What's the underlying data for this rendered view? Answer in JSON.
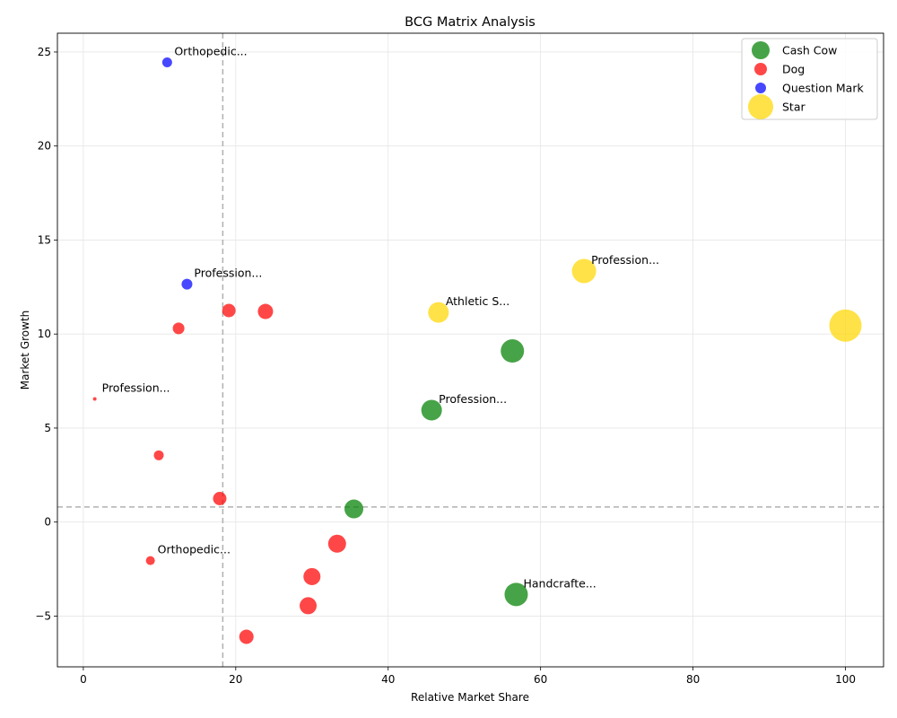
{
  "chart_data": {
    "type": "scatter",
    "title": "BCG Matrix Analysis",
    "xlabel": "Relative Market Share",
    "ylabel": "Market Growth",
    "xlim": [
      -3.4,
      105
    ],
    "ylim": [
      -7.7,
      26
    ],
    "xticks": [
      0,
      20,
      40,
      60,
      80,
      100
    ],
    "yticks": [
      -5,
      0,
      5,
      10,
      15,
      20,
      25
    ],
    "grid": true,
    "legend_position": "top-right",
    "thresholds": {
      "x": 18.3,
      "y": 0.8
    },
    "series": [
      {
        "name": "Cash Cow",
        "color": "#008000",
        "legend_marker_size": 10,
        "points": [
          {
            "x": 56.3,
            "y": 9.1,
            "size": 13,
            "label": ""
          },
          {
            "x": 45.7,
            "y": 5.95,
            "size": 11.5,
            "label": "Profession..."
          },
          {
            "x": 35.5,
            "y": 0.7,
            "size": 10.5,
            "label": ""
          },
          {
            "x": 56.8,
            "y": -3.85,
            "size": 13,
            "label": "Handcrafte..."
          }
        ]
      },
      {
        "name": "Dog",
        "color": "#ff0000",
        "legend_marker_size": 7,
        "points": [
          {
            "x": 19.1,
            "y": 11.25,
            "size": 7.5,
            "label": ""
          },
          {
            "x": 23.9,
            "y": 11.2,
            "size": 8.5,
            "label": ""
          },
          {
            "x": 12.5,
            "y": 10.3,
            "size": 6.5,
            "label": ""
          },
          {
            "x": 1.5,
            "y": 6.55,
            "size": 2,
            "label": "Profession..."
          },
          {
            "x": 9.9,
            "y": 3.55,
            "size": 5.5,
            "label": ""
          },
          {
            "x": 17.9,
            "y": 1.25,
            "size": 7.5,
            "label": ""
          },
          {
            "x": 33.3,
            "y": -1.15,
            "size": 10,
            "label": ""
          },
          {
            "x": 8.8,
            "y": -2.05,
            "size": 5,
            "label": "Orthopedic..."
          },
          {
            "x": 30,
            "y": -2.9,
            "size": 9.5,
            "label": ""
          },
          {
            "x": 29.5,
            "y": -4.45,
            "size": 9.5,
            "label": ""
          },
          {
            "x": 21.4,
            "y": -6.1,
            "size": 8,
            "label": ""
          }
        ]
      },
      {
        "name": "Question Mark",
        "color": "#0000ff",
        "legend_marker_size": 6,
        "points": [
          {
            "x": 11,
            "y": 24.45,
            "size": 5.5,
            "label": "Orthopedic..."
          },
          {
            "x": 13.6,
            "y": 12.65,
            "size": 6,
            "label": "Profession..."
          }
        ]
      },
      {
        "name": "Star",
        "color": "#ffd700",
        "legend_marker_size": 14,
        "points": [
          {
            "x": 65.7,
            "y": 13.35,
            "size": 13.5,
            "label": "Profession..."
          },
          {
            "x": 46.6,
            "y": 11.15,
            "size": 11.5,
            "label": "Athletic S..."
          },
          {
            "x": 100,
            "y": 10.45,
            "size": 18,
            "label": ""
          }
        ]
      }
    ]
  }
}
